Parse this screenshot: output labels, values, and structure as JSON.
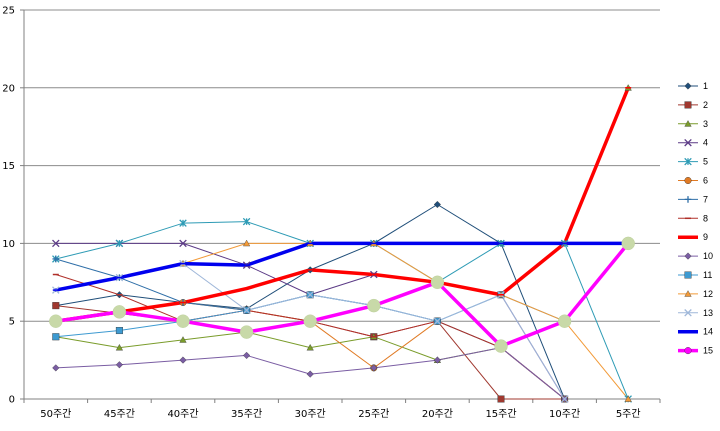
{
  "chart_data": {
    "type": "line",
    "title": "",
    "xlabel": "",
    "ylabel": "",
    "categories": [
      "50주간",
      "45주간",
      "40주간",
      "35주간",
      "30주간",
      "25주간",
      "20주간",
      "15주간",
      "10주간",
      "5주간"
    ],
    "ylim": [
      0,
      25
    ],
    "yticks": [
      "0",
      "5",
      "10",
      "15",
      "20",
      "25"
    ],
    "grid": true,
    "legend_position": "right",
    "series": [
      {
        "name": "1",
        "color": "#1f4e79",
        "marker": "diamond",
        "width": 1,
        "values": [
          6,
          6.7,
          6.2,
          5.8,
          8.3,
          10,
          12.5,
          10,
          0,
          null
        ]
      },
      {
        "name": "2",
        "color": "#a0382f",
        "marker": "square",
        "width": 1,
        "values": [
          6,
          5.5,
          5,
          5.7,
          5,
          4,
          5,
          0,
          0,
          null
        ]
      },
      {
        "name": "3",
        "color": "#7a9c2b",
        "marker": "triangle",
        "width": 1,
        "values": [
          4,
          3.3,
          3.8,
          4.3,
          3.3,
          4,
          2.5,
          3.3,
          null,
          20
        ]
      },
      {
        "name": "4",
        "color": "#5b3a86",
        "marker": "x",
        "width": 1,
        "values": [
          10,
          10,
          10,
          8.6,
          6.7,
          8,
          7.5,
          6.7,
          0,
          null
        ]
      },
      {
        "name": "5",
        "color": "#2e9bb5",
        "marker": "asterisk",
        "width": 1,
        "values": [
          9,
          10,
          11.3,
          11.4,
          10,
          10,
          7.5,
          10,
          10,
          0
        ]
      },
      {
        "name": "6",
        "color": "#e07a24",
        "marker": "circle",
        "width": 1,
        "values": [
          null,
          5.6,
          6.2,
          5.7,
          5,
          2,
          5,
          3.3,
          0,
          null
        ]
      },
      {
        "name": "7",
        "color": "#2f6fa8",
        "marker": "plus",
        "width": 1,
        "values": [
          9,
          7.8,
          6.2,
          5.7,
          6.7,
          6,
          5,
          3.3,
          0,
          null
        ]
      },
      {
        "name": "8",
        "color": "#b0302a",
        "marker": "dash",
        "width": 1,
        "values": [
          8,
          6.7,
          5,
          5.7,
          5,
          4,
          5,
          3.3,
          0,
          null
        ]
      },
      {
        "name": "9",
        "color": "#ff0000",
        "marker": "dash",
        "width": 3.5,
        "values": [
          5,
          5.6,
          6.2,
          7.1,
          8.3,
          8,
          7.5,
          6.7,
          10,
          20
        ]
      },
      {
        "name": "10",
        "color": "#7a5da3",
        "marker": "diamond",
        "width": 1,
        "values": [
          2,
          2.2,
          2.5,
          2.8,
          1.6,
          2,
          2.5,
          3.3,
          0,
          null
        ]
      },
      {
        "name": "11",
        "color": "#3d9ad1",
        "marker": "square",
        "width": 1,
        "values": [
          4,
          4.4,
          5,
          5.7,
          6.7,
          6,
          5,
          6.7,
          5,
          null
        ]
      },
      {
        "name": "12",
        "color": "#f29a38",
        "marker": "triangle",
        "width": 1,
        "values": [
          null,
          null,
          8.7,
          10,
          10,
          10,
          7.5,
          6.7,
          5,
          0
        ]
      },
      {
        "name": "13",
        "color": "#9fb7d9",
        "marker": "x",
        "width": 1,
        "values": [
          7,
          7.8,
          8.7,
          5.7,
          6.7,
          6,
          5,
          6.7,
          0,
          null
        ]
      },
      {
        "name": "14",
        "color": "#0000ee",
        "marker": "dash",
        "width": 3.5,
        "values": [
          7,
          7.8,
          8.7,
          8.6,
          10,
          10,
          10,
          10,
          10,
          10
        ]
      },
      {
        "name": "15",
        "color": "#ff00ff",
        "marker": "circle",
        "width": 3.5,
        "values": [
          5,
          5.6,
          5,
          4.3,
          5,
          6,
          7.5,
          3.4,
          5,
          10
        ]
      }
    ]
  }
}
